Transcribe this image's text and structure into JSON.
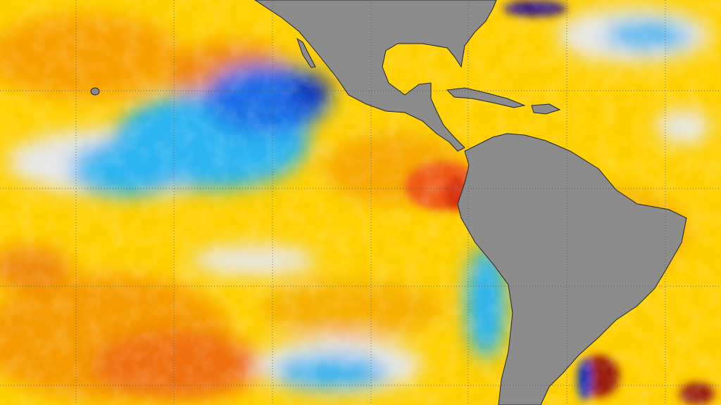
{
  "map": {
    "type": "sea surface temperature anomaly",
    "colors": {
      "land": "#8c8c8c",
      "neutral": "#e4e4e4",
      "warm_light": "#ffd400",
      "warm_mid": "#f7a800",
      "warm_strong": "#f05a12",
      "warm_extreme": "#9a1a08",
      "cool_light": "#2ab4f0",
      "cool_mid": "#1a6ee8",
      "cool_strong": "#1030c0",
      "grid": "#555555"
    },
    "gridlines": true
  }
}
